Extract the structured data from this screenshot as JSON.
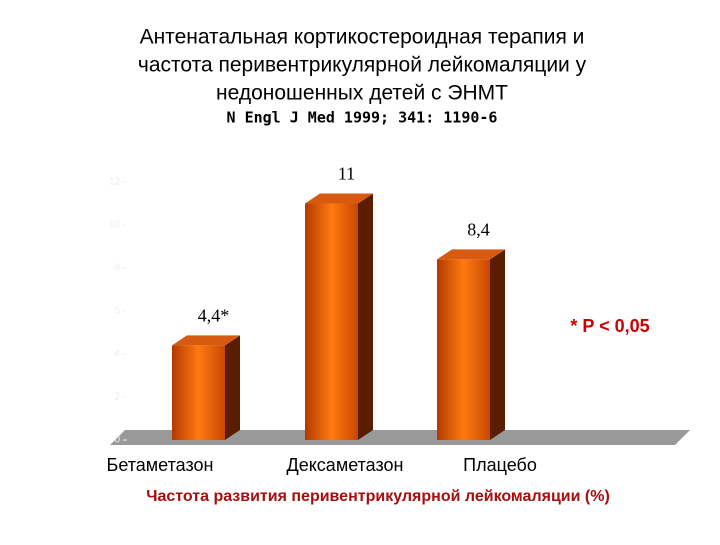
{
  "chart_data": {
    "type": "bar3d",
    "title_lines": [
      "Антенатальная кортикостероидная терапия и",
      "частота перивентрикулярной лейкомаляции у",
      "недоношенных детей с ЭНМТ"
    ],
    "subtitle": "N Engl J Med 1999; 341: 1190-6",
    "categories": [
      "Бетаметазон",
      "Дексаметазон",
      "Плацебо"
    ],
    "values": [
      4.4,
      11,
      8.4
    ],
    "value_labels": [
      "4,4*",
      "11",
      "8,4"
    ],
    "color": "#ff6a00",
    "ylim": [
      0,
      12
    ],
    "yticks": [
      0,
      2,
      4,
      6,
      8,
      10,
      12
    ],
    "annotation": "* P < 0,05",
    "x_label": "Частота развития перивентрикулярной лейкомаляции (%)"
  }
}
